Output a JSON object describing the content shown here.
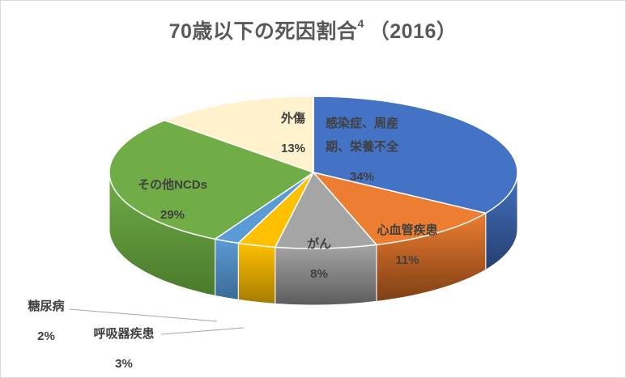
{
  "chart_data": {
    "type": "pie",
    "title": "70歳以下の死因割合",
    "title_superscript": "4",
    "title_year": "（2016）",
    "slices": [
      {
        "label": "感染症、周産期、栄養不全",
        "label_lines": [
          "感染症、周産",
          "期、栄養不全"
        ],
        "value": 34,
        "display": "34%",
        "color": "#4472c4",
        "side_color": "#263f6e"
      },
      {
        "label": "心血管疾患",
        "label_lines": [
          "心血管疾患"
        ],
        "value": 11,
        "display": "11%",
        "color": "#ed7d31",
        "side_color": "#7e3f14"
      },
      {
        "label": "がん",
        "label_lines": [
          "がん"
        ],
        "value": 8,
        "display": "8%",
        "color": "#a5a5a5",
        "side_color": "#5c5c5c"
      },
      {
        "label": "呼吸器疾患",
        "label_lines": [
          "呼吸器疾患"
        ],
        "value": 3,
        "display": "3%",
        "color": "#ffc000",
        "side_color": "#a57c00"
      },
      {
        "label": "糖尿病",
        "label_lines": [
          "糖尿病"
        ],
        "value": 2,
        "display": "2%",
        "color": "#5b9bd5",
        "side_color": "#3a6a96"
      },
      {
        "label": "その他NCDs",
        "label_lines": [
          "その他NCDs"
        ],
        "value": 29,
        "display": "29%",
        "color": "#70ad47",
        "side_color": "#4a7a2c"
      },
      {
        "label": "外傷",
        "label_lines": [
          "外傷"
        ],
        "value": 13,
        "display": "13%",
        "color": "#fff2cc",
        "side_color": "#c9bf9f"
      }
    ],
    "start_angle": "12 o'clock",
    "direction": "clockwise",
    "view": "3d-tilted",
    "legend": "none"
  }
}
